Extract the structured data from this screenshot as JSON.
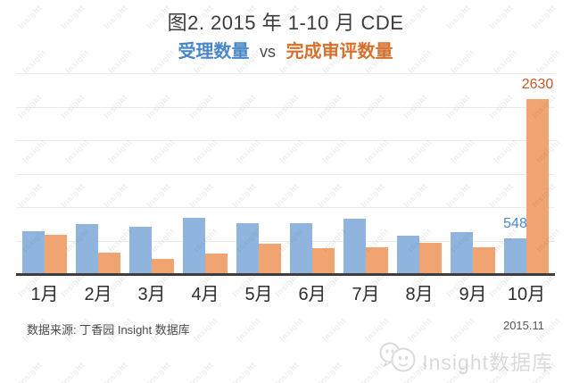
{
  "title": {
    "line1": "图2. 2015 年 1-10 月 CDE",
    "series1_label": "受理数量",
    "vs_label": "vs",
    "series2_label": "完成审评数量"
  },
  "footer": {
    "source": "数据来源: 丁香园 Insight 数据库",
    "date": "2015.11"
  },
  "branding": {
    "logo_text": "Insight数据库",
    "logo_icon": "two-chat-bubble-faces-icon",
    "watermark_text": "Insight"
  },
  "colors": {
    "accepted_bar_blue": "#8fb5df",
    "reviewed_bar_orange": "#f0a471",
    "accepted_text_blue": "#4a87c9",
    "reviewed_text_orange": "#d8702c",
    "value_label_orange": "#c05a2b",
    "axis_dark": "#3d3d3d",
    "gridline_gray": "#ebebeb",
    "watermark_gray": "#e4e4e4"
  },
  "chart_data": {
    "type": "bar",
    "title": "图2. 2015 年 1-10 月 CDE 受理数量 vs 完成审评数量",
    "categories": [
      "1月",
      "2月",
      "3月",
      "4月",
      "5月",
      "6月",
      "7月",
      "8月",
      "9月",
      "10月"
    ],
    "series": [
      {
        "name": "受理数量",
        "color": "#8fb5df",
        "values": [
          660,
          760,
          715,
          850,
          780,
          775,
          845,
          585,
          640,
          548
        ]
      },
      {
        "name": "完成审评数量",
        "color": "#f0a471",
        "values": [
          600,
          340,
          240,
          315,
          465,
          395,
          410,
          475,
          415,
          2630
        ]
      }
    ],
    "ylim": [
      0,
      3000
    ],
    "gridline_interval": 500,
    "grid": true,
    "y_axis_ticks_visible": false,
    "legend_position": "in-title",
    "data_labels": [
      {
        "series_index": 0,
        "category_index": 9,
        "text": "548",
        "color": "#4a87c9"
      },
      {
        "series_index": 1,
        "category_index": 9,
        "text": "2630",
        "color": "#c05a2b"
      }
    ]
  }
}
